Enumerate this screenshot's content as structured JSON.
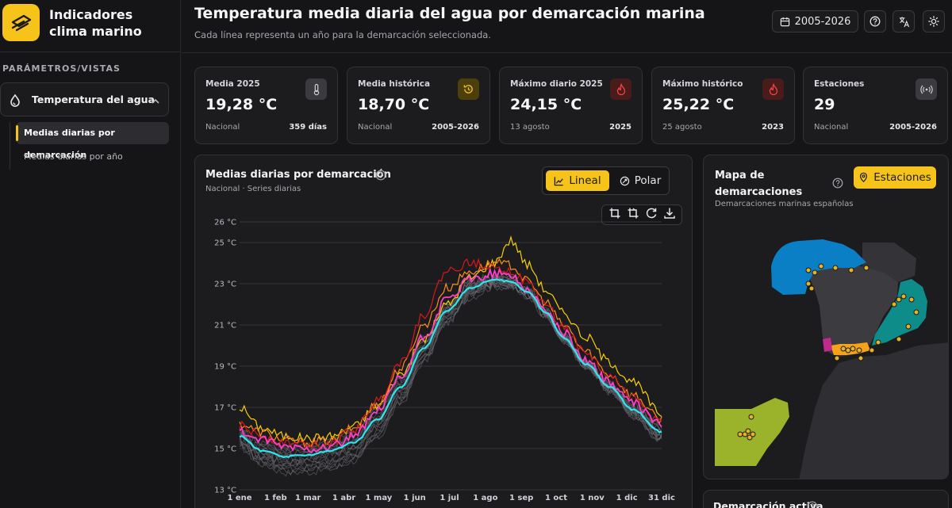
{
  "brand": {
    "title_line1": "Indicadores",
    "title_line2": "clima marino",
    "logo_icon": "satellite-icon",
    "accent": "#f6c31a"
  },
  "sidebar": {
    "section_label": "PARÁMETROS/VISTAS",
    "group": {
      "label": "Temperatura del agua",
      "icon": "water-temperature-icon",
      "expanded": true
    },
    "items": [
      {
        "label": "Medias diarias por demarcación",
        "active": true
      },
      {
        "label": "Medias diarias por año",
        "active": false
      }
    ]
  },
  "header": {
    "title": "Temperatura media diaria del agua por demarcación marina",
    "subtitle": "Cada línea representa un año para la demarcación seleccionada.",
    "range_label": "2005-2026"
  },
  "cards": [
    {
      "label": "Media 2025",
      "value": "19,28 °C",
      "left": "Nacional",
      "right": "359 días",
      "icon": "thermometer-icon",
      "icon_bg": "#3a3a3f",
      "icon_color": "#cfcfd5"
    },
    {
      "label": "Media histórica",
      "value": "18,70 °C",
      "left": "Nacional",
      "right": "2005-2026",
      "icon": "history-icon",
      "icon_bg": "#4d3f0c",
      "icon_color": "#f6c31a"
    },
    {
      "label": "Máximo diario 2025",
      "value": "24,15 °C",
      "left": "13 agosto",
      "right": "2025",
      "icon": "flame-icon",
      "icon_bg": "#4a1b1b",
      "icon_color": "#ef4444"
    },
    {
      "label": "Máximo histórico",
      "value": "25,22 °C",
      "left": "25 agosto",
      "right": "2023",
      "icon": "flame-icon",
      "icon_bg": "#4a1b1b",
      "icon_color": "#ef4444"
    },
    {
      "label": "Estaciones",
      "value": "29",
      "left": "Nacional",
      "right": "2005-2026",
      "icon": "antenna-icon",
      "icon_bg": "#3a3a3f",
      "icon_color": "#cfcfd5"
    }
  ],
  "chart_panel": {
    "title": "Medias diarias por demarcación",
    "subtitle": "Nacional · Series diarias",
    "toggle": {
      "lineal": "Lineal",
      "polar": "Polar",
      "selected": "Lineal"
    },
    "tools": [
      "zoom-area-icon",
      "zoom-reset-icon",
      "restore-icon",
      "download-icon"
    ]
  },
  "chart_data": {
    "type": "line",
    "title": "",
    "xlabel": "",
    "ylabel": "",
    "x_ticks": [
      "1 ene",
      "1 feb",
      "1 mar",
      "1 abr",
      "1 may",
      "1 jun",
      "1 jul",
      "1 ago",
      "1 sep",
      "1 oct",
      "1 nov",
      "1 dic",
      "31 dic"
    ],
    "x_tick_days": [
      1,
      32,
      60,
      91,
      121,
      152,
      182,
      213,
      244,
      274,
      305,
      335,
      365
    ],
    "y_ticks": [
      "13 °C",
      "15 °C",
      "17 °C",
      "19 °C",
      "21 °C",
      "23 °C",
      "25 °C",
      "26 °C"
    ],
    "y_tick_values": [
      13,
      15,
      17,
      19,
      21,
      23,
      25,
      26
    ],
    "ylim": [
      13,
      26
    ],
    "xlim": [
      1,
      365
    ],
    "grid": true,
    "series": [
      {
        "color": "#f6d000",
        "values": [
          [
            1,
            17.0
          ],
          [
            20,
            16.0
          ],
          [
            40,
            15.6
          ],
          [
            60,
            15.5
          ],
          [
            80,
            15.6
          ],
          [
            100,
            16.1
          ],
          [
            120,
            17.1
          ],
          [
            140,
            18.6
          ],
          [
            160,
            20.3
          ],
          [
            180,
            22.0
          ],
          [
            200,
            23.3
          ],
          [
            220,
            24.0
          ],
          [
            235,
            25.1
          ],
          [
            250,
            23.9
          ],
          [
            265,
            22.7
          ],
          [
            280,
            21.6
          ],
          [
            300,
            20.4
          ],
          [
            320,
            19.2
          ],
          [
            340,
            18.2
          ],
          [
            365,
            16.7
          ]
        ]
      },
      {
        "color": "#ff8c1a",
        "values": [
          [
            1,
            16.2
          ],
          [
            20,
            15.8
          ],
          [
            40,
            15.4
          ],
          [
            60,
            15.3
          ],
          [
            80,
            15.4
          ],
          [
            100,
            16.0
          ],
          [
            120,
            17.2
          ],
          [
            140,
            18.9
          ],
          [
            160,
            21.0
          ],
          [
            180,
            22.8
          ],
          [
            200,
            23.6
          ],
          [
            220,
            24.0
          ],
          [
            235,
            23.9
          ],
          [
            250,
            23.1
          ],
          [
            265,
            22.1
          ],
          [
            280,
            21.0
          ],
          [
            300,
            19.7
          ],
          [
            320,
            18.6
          ],
          [
            340,
            17.6
          ],
          [
            365,
            16.4
          ]
        ]
      },
      {
        "color": "#d7191c",
        "values": [
          [
            1,
            16.1
          ],
          [
            20,
            15.6
          ],
          [
            40,
            15.3
          ],
          [
            60,
            15.2
          ],
          [
            80,
            15.3
          ],
          [
            100,
            15.9
          ],
          [
            120,
            17.3
          ],
          [
            140,
            19.2
          ],
          [
            160,
            21.5
          ],
          [
            180,
            23.6
          ],
          [
            200,
            24.0
          ],
          [
            220,
            23.9
          ],
          [
            235,
            23.6
          ],
          [
            250,
            23.0
          ],
          [
            265,
            22.0
          ],
          [
            280,
            20.9
          ],
          [
            300,
            19.6
          ],
          [
            320,
            18.5
          ],
          [
            340,
            17.5
          ],
          [
            365,
            16.3
          ]
        ]
      },
      {
        "color": "#ff3ec8",
        "values": [
          [
            1,
            15.8
          ],
          [
            20,
            15.4
          ],
          [
            40,
            15.1
          ],
          [
            60,
            15.0
          ],
          [
            80,
            15.1
          ],
          [
            100,
            15.6
          ],
          [
            120,
            16.8
          ],
          [
            140,
            18.4
          ],
          [
            160,
            20.4
          ],
          [
            180,
            22.2
          ],
          [
            200,
            23.2
          ],
          [
            220,
            23.5
          ],
          [
            235,
            23.4
          ],
          [
            250,
            22.7
          ],
          [
            265,
            21.7
          ],
          [
            280,
            20.6
          ],
          [
            300,
            19.3
          ],
          [
            320,
            18.2
          ],
          [
            340,
            17.2
          ],
          [
            365,
            16.2
          ]
        ]
      },
      {
        "color": "#2ee6ee",
        "values": [
          [
            1,
            15.6
          ],
          [
            20,
            14.9
          ],
          [
            40,
            14.6
          ],
          [
            60,
            14.7
          ],
          [
            80,
            14.9
          ],
          [
            100,
            15.3
          ],
          [
            120,
            16.4
          ],
          [
            140,
            18.0
          ],
          [
            160,
            19.9
          ],
          [
            180,
            21.7
          ],
          [
            200,
            22.8
          ],
          [
            220,
            23.2
          ],
          [
            235,
            23.1
          ],
          [
            250,
            22.6
          ],
          [
            265,
            21.6
          ],
          [
            280,
            20.4
          ],
          [
            300,
            19.1
          ],
          [
            320,
            18.0
          ],
          [
            340,
            16.9
          ],
          [
            365,
            15.8
          ]
        ]
      }
    ],
    "background_series_color": "#707076"
  },
  "map_panel": {
    "title": "Mapa de demarcaciones",
    "subtitle": "Demarcaciones marinas españolas",
    "button": "Estaciones",
    "colors": {
      "noratlantica": "#0a7fc6",
      "levantino_balear": "#0e8c8a",
      "estrecho_alboran": "#f6a21a",
      "canaria": "#9bb32a",
      "land": "#3b3b40",
      "stations": "#e6b422"
    }
  },
  "active_panel": {
    "title": "Demarcación activa"
  }
}
